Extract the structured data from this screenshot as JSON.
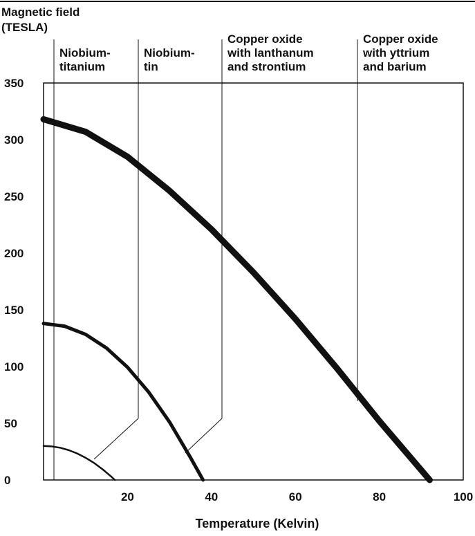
{
  "chart_data": {
    "type": "line",
    "xlabel": "Temperature (Kelvin)",
    "ylabel_lines": [
      "Magnetic field",
      "(TESLA)"
    ],
    "xlim": [
      0,
      100
    ],
    "ylim": [
      0,
      350
    ],
    "x_ticks": [
      "20",
      "40",
      "60",
      "80",
      "100"
    ],
    "y_ticks": [
      "0",
      "50",
      "100",
      "150",
      "200",
      "250",
      "300",
      "350"
    ],
    "grid": false,
    "legend": "top (column labels)",
    "colors": {
      "curve": "#111111",
      "axis": "#111111",
      "background": "#ffffff"
    },
    "series": [
      {
        "name_lines": [
          "Niobium-",
          "titanium"
        ],
        "tc": 17,
        "x": [
          0,
          2,
          4,
          6,
          8,
          10,
          12,
          14,
          16,
          17
        ],
        "y": [
          30,
          29.6,
          28.4,
          26.3,
          23.4,
          19.6,
          15.1,
          9.6,
          3.4,
          0
        ]
      },
      {
        "name_lines": [
          "Niobium-",
          "tin"
        ],
        "tc": 38,
        "x": [
          0,
          5,
          10,
          15,
          20,
          25,
          30,
          35,
          38
        ],
        "y": [
          138,
          135.6,
          128.4,
          116.3,
          99.4,
          77.7,
          51.2,
          19.8,
          0
        ]
      },
      {
        "name_lines": [
          "Copper oxide",
          "with lanthanum",
          "and strontium"
        ],
        "tc": 92,
        "x": [
          0,
          10,
          20,
          30,
          40,
          50,
          60,
          70,
          80,
          92
        ],
        "y": [
          318,
          307,
          285,
          255,
          221,
          183,
          142,
          98,
          52,
          0
        ]
      },
      {
        "name_lines": [
          "Copper oxide",
          "with yttrium",
          "and barium"
        ],
        "tc": 92,
        "x": [],
        "y": []
      }
    ]
  }
}
